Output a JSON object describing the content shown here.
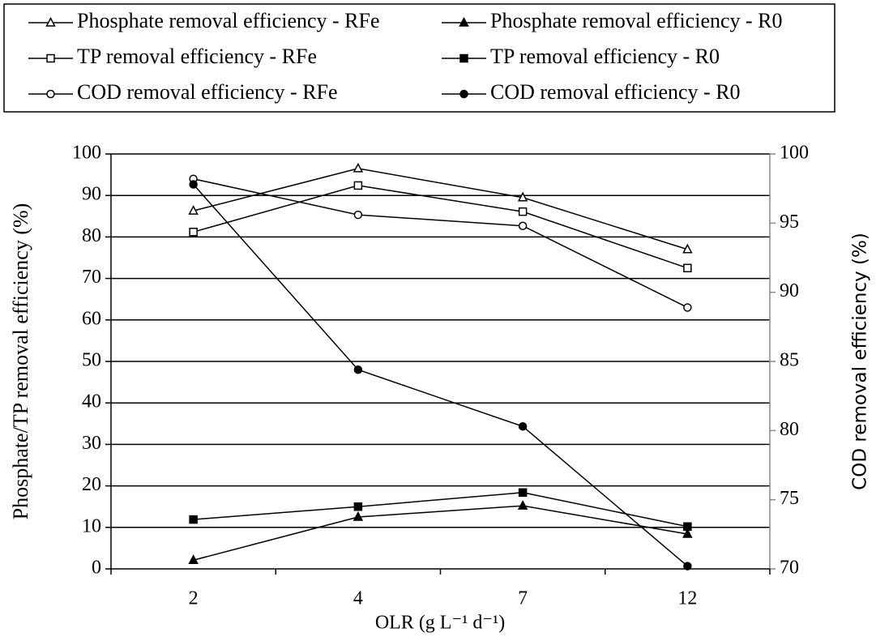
{
  "chart_data": {
    "type": "line",
    "categories": [
      "2",
      "4",
      "7",
      "12"
    ],
    "x_label": "OLR (g L⁻¹ d⁻¹)",
    "y_label": "Phosphate/TP removal efficiency (%)",
    "y2_label": "COD removal efficiency (%)",
    "ylim": [
      0,
      100
    ],
    "yticks": [
      0,
      10,
      20,
      30,
      40,
      50,
      60,
      70,
      80,
      90,
      100
    ],
    "y2lim": [
      70,
      100
    ],
    "y2ticks": [
      70,
      75,
      80,
      85,
      90,
      95,
      100
    ],
    "grid": true,
    "series": [
      {
        "name": "Phosphate removal efficiency - RFe",
        "color": "#000000",
        "marker": "triangle",
        "open": true,
        "values": [
          86.3,
          96.5,
          89.5,
          77
        ]
      },
      {
        "name": "Phosphate removal efficiency - R0",
        "color": "#000000",
        "marker": "triangle",
        "open": false,
        "values": [
          2.1,
          12.5,
          15.2,
          8.4
        ]
      },
      {
        "name": "TP removal efficiency - RFe",
        "color": "#000000",
        "marker": "square",
        "open": true,
        "values": [
          81.2,
          92.4,
          86.1,
          72.5
        ]
      },
      {
        "name": "TP removal efficiency - R0",
        "color": "#000000",
        "marker": "square",
        "open": false,
        "values": [
          11.9,
          15,
          18.4,
          10.2
        ]
      },
      {
        "name": "COD removal efficiency - RFe",
        "color": "#000000",
        "marker": "circle",
        "open": true,
        "axis": "y2",
        "values": [
          98.2,
          95.6,
          94.8,
          88.9
        ]
      },
      {
        "name": "COD removal efficiency - R0",
        "color": "#000000",
        "marker": "circle",
        "open": false,
        "axis": "y2",
        "values": [
          97.8,
          84.4,
          80.3,
          70.2
        ]
      }
    ]
  }
}
